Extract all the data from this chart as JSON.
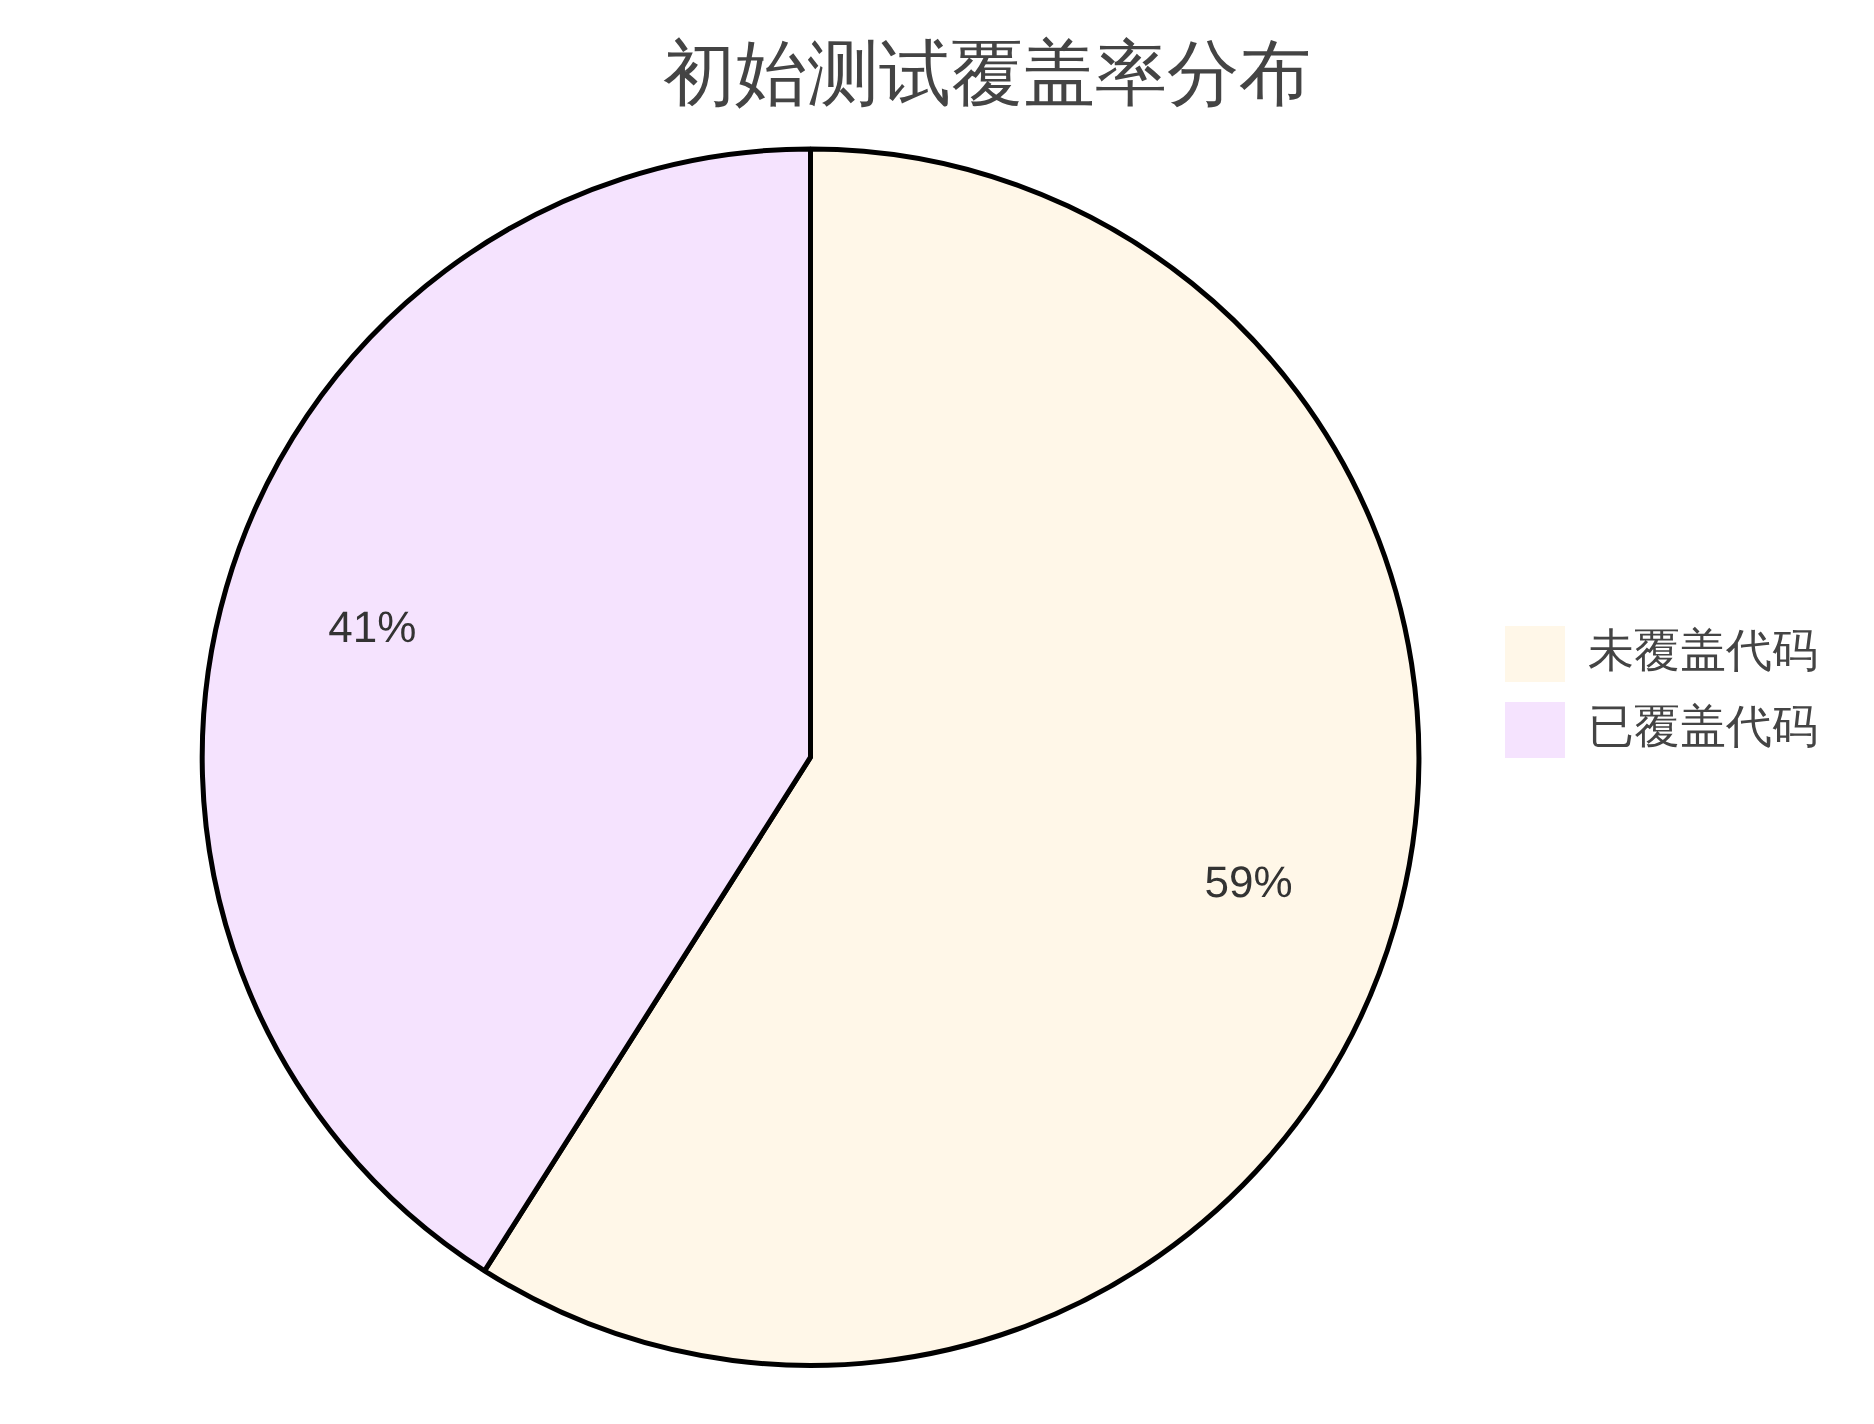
{
  "chart_data": {
    "type": "pie",
    "title": "初始测试覆盖率分布",
    "categories": [
      "未覆盖代码",
      "已覆盖代码"
    ],
    "values": [
      59,
      41
    ],
    "colors": [
      "#fff7e8",
      "#f5e3fe"
    ],
    "value_labels": [
      "59%",
      "41%"
    ],
    "legend": "right"
  }
}
